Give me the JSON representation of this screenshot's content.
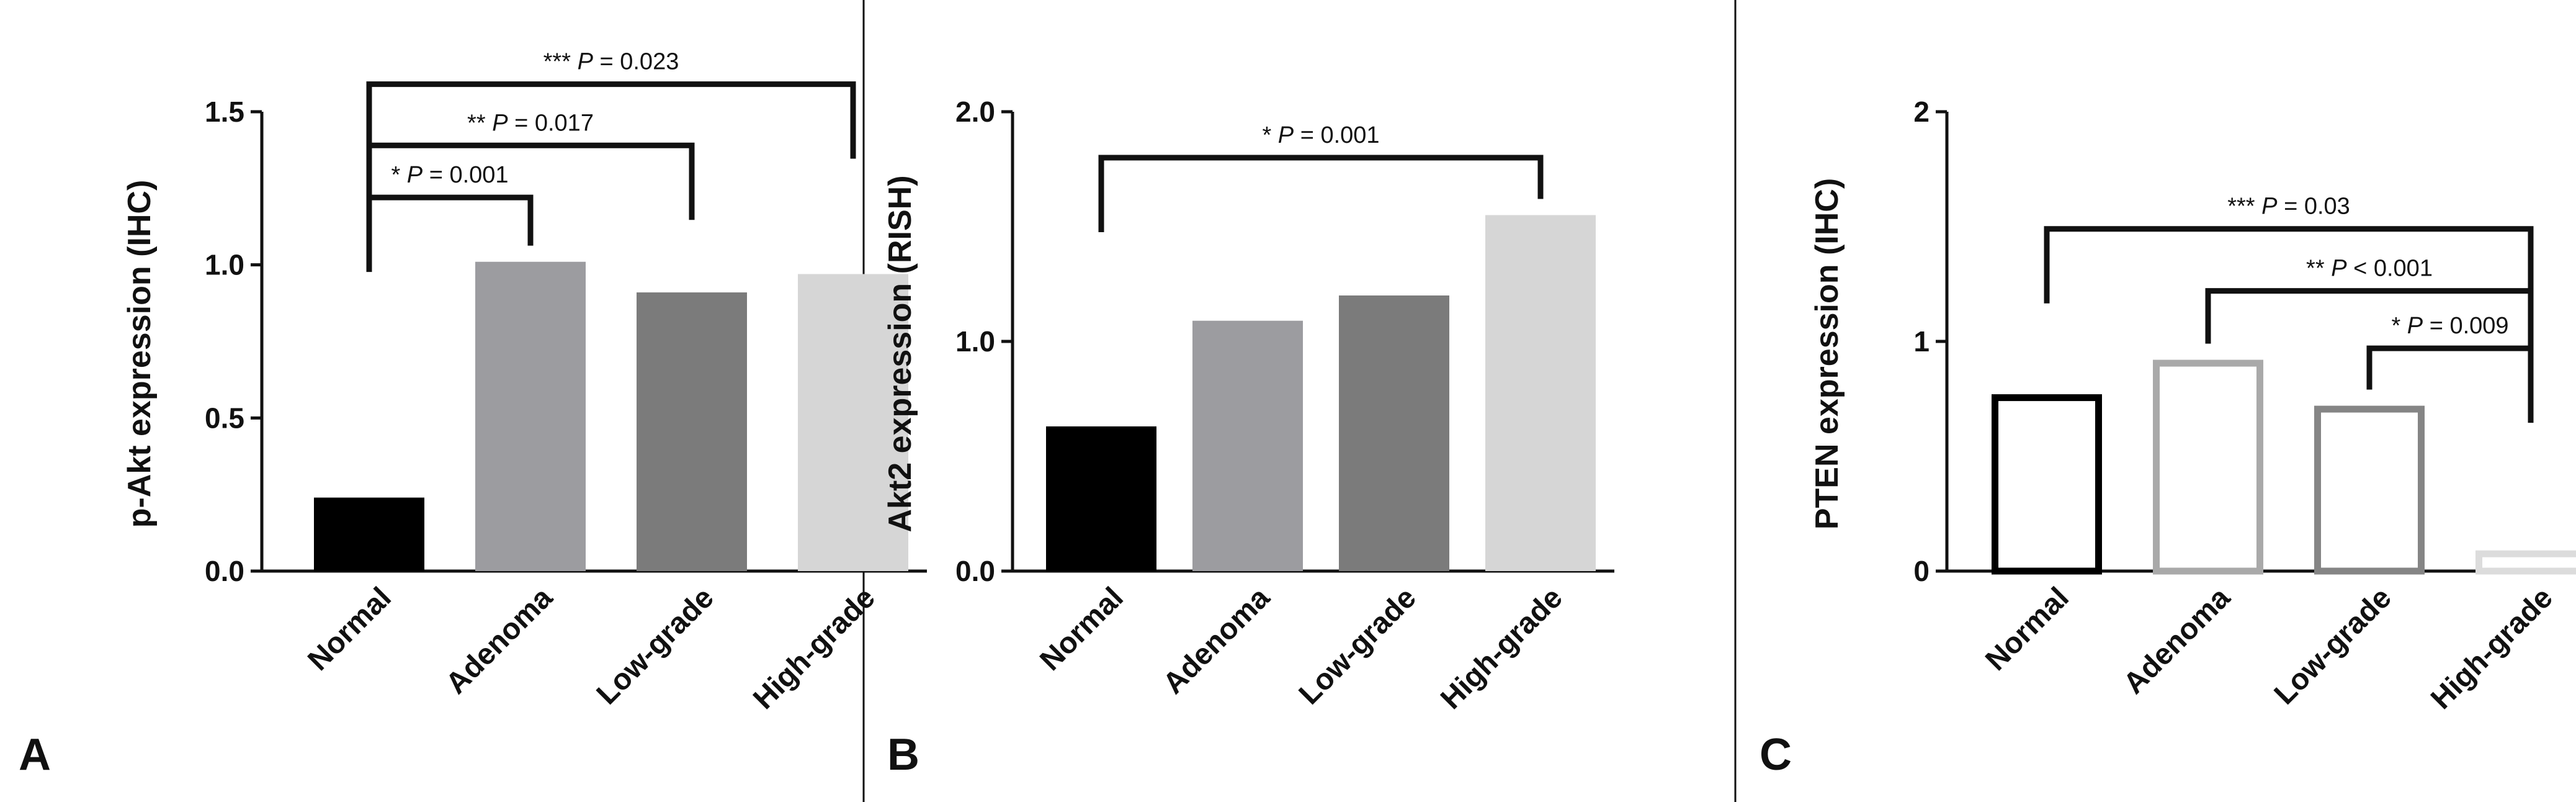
{
  "chart_data": [
    {
      "type": "bar",
      "panel_label": "A",
      "bar_style": "filled",
      "categories": [
        "Normal",
        "Adenoma",
        "Low-grade",
        "High-grade"
      ],
      "values": [
        0.24,
        1.01,
        0.91,
        0.97
      ],
      "colors": [
        "#000000",
        "#9c9ca0",
        "#7b7b7b",
        "#d6d6d6"
      ],
      "ylabel": "p-Akt expression (IHC)",
      "ylim": [
        0,
        1.5
      ],
      "yticks": [
        "0.0",
        "0.5",
        "1.0",
        "1.5"
      ],
      "ytick_values": [
        0,
        0.5,
        1.0,
        1.5
      ],
      "comparisons": [
        {
          "from": 0,
          "to": 1,
          "stars": "*",
          "p_label": "P",
          "p_text": " = 0.001",
          "height": 1.22
        },
        {
          "from": 0,
          "to": 2,
          "stars": "**",
          "p_label": "P",
          "p_text": " = 0.017",
          "height": 1.39
        },
        {
          "from": 0,
          "to": 3,
          "stars": "***",
          "p_label": "P",
          "p_text": " = 0.023",
          "height": 1.59
        }
      ]
    },
    {
      "type": "bar",
      "panel_label": "B",
      "bar_style": "filled",
      "categories": [
        "Normal",
        "Adenoma",
        "Low-grade",
        "High-grade"
      ],
      "values": [
        0.63,
        1.09,
        1.2,
        1.55
      ],
      "colors": [
        "#000000",
        "#9c9ca0",
        "#7b7b7b",
        "#d6d6d6"
      ],
      "ylabel": "Akt2 expression (RISH)",
      "ylim": [
        0,
        2.0
      ],
      "yticks": [
        "0.0",
        "1.0",
        "2.0"
      ],
      "ytick_values": [
        0,
        1.0,
        2.0
      ],
      "comparisons": [
        {
          "from": 0,
          "to": 3,
          "stars": "*",
          "p_label": "P",
          "p_text": " = 0.001",
          "height": 1.8
        }
      ]
    },
    {
      "type": "bar",
      "panel_label": "C",
      "bar_style": "outline",
      "categories": [
        "Normal",
        "Adenoma",
        "Low-grade",
        "High-grade"
      ],
      "values": [
        0.77,
        0.92,
        0.72,
        0.09
      ],
      "colors": [
        "#000000",
        "#a9a9a9",
        "#858585",
        "#dcdcdc"
      ],
      "ylabel": "PTEN expression (IHC)",
      "ylim": [
        0,
        2
      ],
      "yticks": [
        "0",
        "1",
        "2"
      ],
      "ytick_values": [
        0,
        1,
        2
      ],
      "comparisons": [
        {
          "from": 0,
          "to": 3,
          "stars": "***",
          "p_label": "P",
          "p_text": " = 0.03",
          "height": 1.49
        },
        {
          "from": 1,
          "to": 3,
          "stars": "**",
          "p_label": "P",
          "p_text": " < 0.001",
          "height": 1.22
        },
        {
          "from": 2,
          "to": 3,
          "stars": "*",
          "p_label": "P",
          "p_text": " = 0.009",
          "height": 0.97
        }
      ]
    }
  ]
}
